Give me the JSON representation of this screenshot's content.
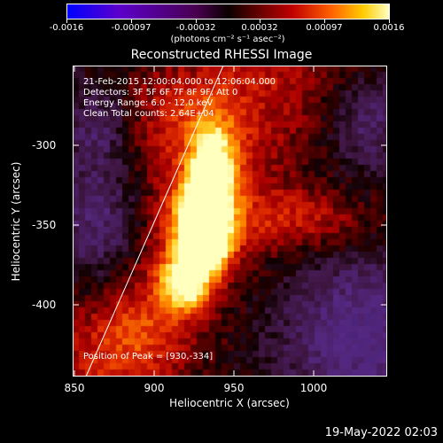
{
  "colorbar": {
    "labels": [
      "-0.0016",
      "-0.00097",
      "-0.00032",
      "0.00032",
      "0.00097",
      "0.0016"
    ],
    "units": "(photons cm⁻² s⁻¹ asec⁻²)"
  },
  "title": "Reconstructed RHESSI Image",
  "info": {
    "line1": "21-Feb-2015 12:00:04.000 to 12:06:04.000",
    "line2": "Detectors: 3F 5F 6F 7F 8F 9F, Att 0",
    "line3": "Energy Range: 6.0 - 12.0 keV",
    "line4": "Clean     Total counts: 2.64E+04",
    "peak": "Position of Peak = [930,-334]"
  },
  "axes": {
    "xlabel": "Heliocentric X (arcsec)",
    "ylabel": "Heliocentric Y (arcsec)",
    "xticks": [
      "850",
      "900",
      "950",
      "1000"
    ],
    "yticks": [
      "-300",
      "-350",
      "-400"
    ]
  },
  "footer": {
    "date": "19-May-2022 02:03"
  }
}
